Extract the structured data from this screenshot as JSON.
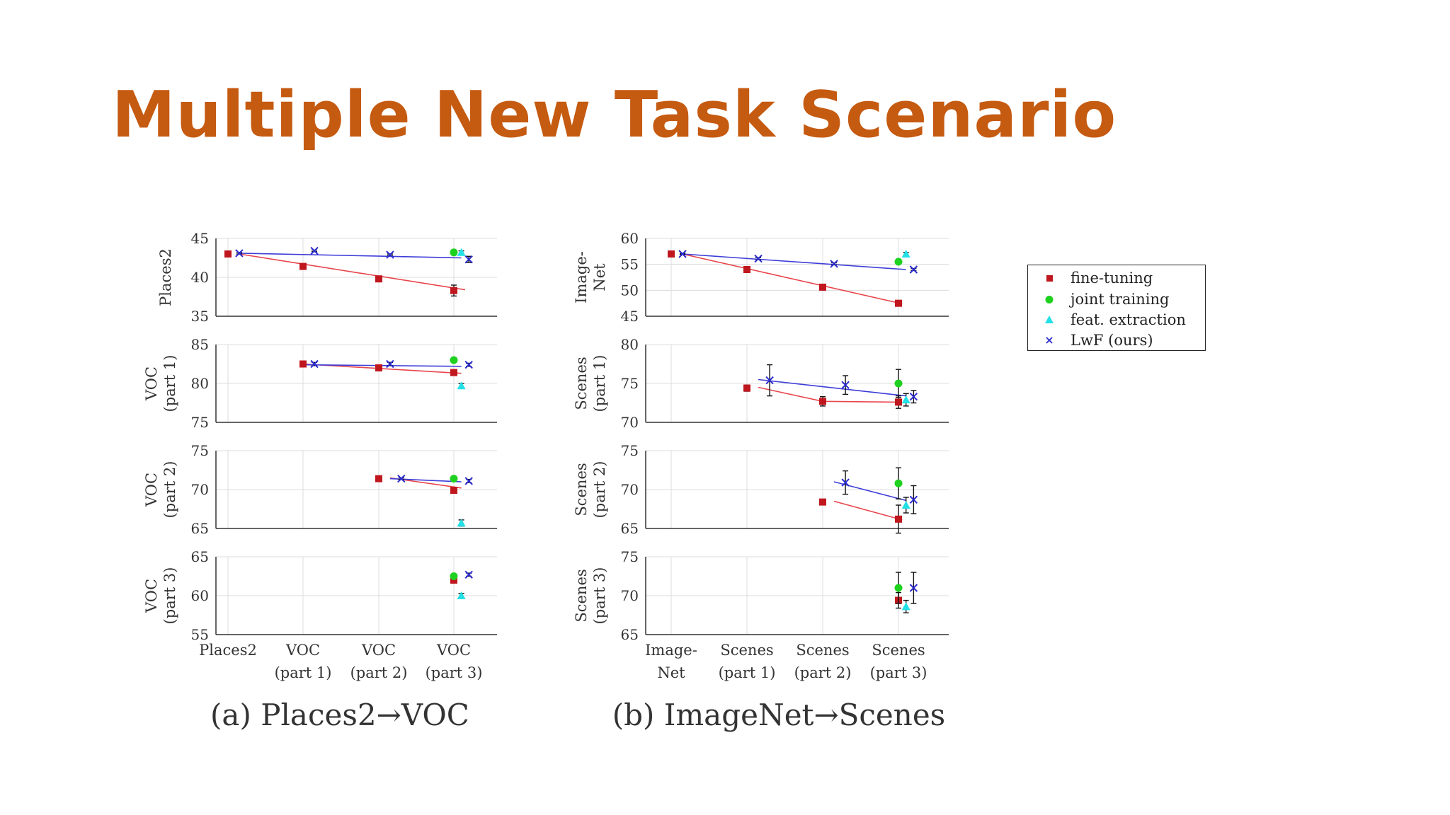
{
  "slide": {
    "title": "Multiple New Task Scenario"
  },
  "legend": {
    "items": [
      {
        "label": "fine-tuning",
        "marker": "square",
        "color": "#c0161e"
      },
      {
        "label": "joint training",
        "marker": "circle",
        "color": "#1fd11f"
      },
      {
        "label": "feat. extraction",
        "marker": "triangle",
        "color": "#22e0e6"
      },
      {
        "label": "LwF (ours)",
        "marker": "x",
        "color": "#2b2bd0"
      }
    ]
  },
  "chart_data": [
    {
      "type": "scatter",
      "title": "(a) Places2→VOC",
      "categories": [
        "Places2",
        "VOC\n(part 1)",
        "VOC\n(part 2)",
        "VOC\n(part 3)"
      ],
      "panels": [
        {
          "ylabel": "Places2",
          "ylim": [
            35,
            45
          ],
          "yticks": [
            35,
            40,
            45
          ],
          "series": [
            {
              "name": "fine-tuning",
              "points": [
                [
                  1,
                  43.0,
                  0
                ],
                [
                  2,
                  41.4,
                  0.2
                ],
                [
                  3,
                  39.8,
                  0.2
                ],
                [
                  4,
                  38.3,
                  0.7
                ]
              ],
              "fit": [
                [
                  1.15,
                  43.0
                ],
                [
                  4.15,
                  38.4
                ]
              ]
            },
            {
              "name": "joint training",
              "points": [
                [
                  4,
                  43.2,
                  0.2
                ]
              ]
            },
            {
              "name": "feat. extraction",
              "points": [
                [
                  4.1,
                  43.2,
                  0.2
                ]
              ]
            },
            {
              "name": "LwF (ours)",
              "points": [
                [
                  1.15,
                  43.1,
                  0.1
                ],
                [
                  2.15,
                  43.4,
                  0.1
                ],
                [
                  3.15,
                  42.9,
                  0.1
                ],
                [
                  4.2,
                  42.3,
                  0.4
                ]
              ],
              "fit": [
                [
                  1.15,
                  43.1
                ],
                [
                  4.1,
                  42.5
                ]
              ]
            }
          ]
        },
        {
          "ylabel": "VOC\n(part 1)",
          "ylim": [
            75,
            85
          ],
          "yticks": [
            75,
            80,
            85
          ],
          "series": [
            {
              "name": "fine-tuning",
              "points": [
                [
                  2,
                  82.5,
                  0.2
                ],
                [
                  3,
                  82.0,
                  0.3
                ],
                [
                  4,
                  81.4,
                  0.3
                ]
              ],
              "fit": [
                [
                  2.0,
                  82.5
                ],
                [
                  4.1,
                  81.3
                ]
              ]
            },
            {
              "name": "joint training",
              "points": [
                [
                  4,
                  83.0,
                  0.3
                ]
              ]
            },
            {
              "name": "feat. extraction",
              "points": [
                [
                  4.1,
                  79.7,
                  0.3
                ]
              ]
            },
            {
              "name": "LwF (ours)",
              "points": [
                [
                  2.15,
                  82.5,
                  0.2
                ],
                [
                  3.15,
                  82.5,
                  0.2
                ],
                [
                  4.2,
                  82.4,
                  0.2
                ]
              ],
              "fit": [
                [
                  2.0,
                  82.4
                ],
                [
                  4.1,
                  82.2
                ]
              ]
            }
          ]
        },
        {
          "ylabel": "VOC\n(part 2)",
          "ylim": [
            65,
            75
          ],
          "yticks": [
            65,
            70,
            75
          ],
          "series": [
            {
              "name": "fine-tuning",
              "points": [
                [
                  3,
                  71.4,
                  0.2
                ],
                [
                  4,
                  69.9,
                  0.3
                ]
              ],
              "fit": [
                [
                  3.15,
                  71.5
                ],
                [
                  4.1,
                  70.2
                ]
              ]
            },
            {
              "name": "joint training",
              "points": [
                [
                  4,
                  71.4,
                  0.3
                ]
              ]
            },
            {
              "name": "feat. extraction",
              "points": [
                [
                  4.1,
                  65.7,
                  0.4
                ]
              ]
            },
            {
              "name": "LwF (ours)",
              "points": [
                [
                  3.3,
                  71.4,
                  0.1
                ],
                [
                  4.2,
                  71.1,
                  0.2
                ]
              ],
              "fit": [
                [
                  3.15,
                  71.4
                ],
                [
                  4.1,
                  71.0
                ]
              ]
            }
          ]
        },
        {
          "ylabel": "VOC\n(part 3)",
          "ylim": [
            55,
            65
          ],
          "yticks": [
            55,
            60,
            65
          ],
          "series": [
            {
              "name": "fine-tuning",
              "points": [
                [
                  4,
                  62.0,
                  0.3
                ]
              ]
            },
            {
              "name": "joint training",
              "points": [
                [
                  4,
                  62.5,
                  0.3
                ]
              ]
            },
            {
              "name": "feat. extraction",
              "points": [
                [
                  4.1,
                  60.0,
                  0.3
                ]
              ]
            },
            {
              "name": "LwF (ours)",
              "points": [
                [
                  4.2,
                  62.7,
                  0.2
                ]
              ]
            }
          ]
        }
      ]
    },
    {
      "type": "scatter",
      "title": "(b) ImageNet→Scenes",
      "categories": [
        "Image-\nNet",
        "Scenes\n(part 1)",
        "Scenes\n(part 2)",
        "Scenes\n(part 3)"
      ],
      "panels": [
        {
          "ylabel": "Image-\nNet",
          "ylim": [
            45,
            60
          ],
          "yticks": [
            45,
            50,
            55,
            60
          ],
          "series": [
            {
              "name": "fine-tuning",
              "points": [
                [
                  1,
                  57.0,
                  0
                ],
                [
                  2,
                  54.0,
                  0.2
                ],
                [
                  3,
                  50.6,
                  0.2
                ],
                [
                  4,
                  47.5,
                  0.3
                ]
              ],
              "fit": [
                [
                  1.15,
                  57.0
                ],
                [
                  4.05,
                  47.4
                ]
              ]
            },
            {
              "name": "joint training",
              "points": [
                [
                  4,
                  55.5,
                  0.3
                ]
              ]
            },
            {
              "name": "feat. extraction",
              "points": [
                [
                  4.1,
                  57.0,
                  0.3
                ]
              ]
            },
            {
              "name": "LwF (ours)",
              "points": [
                [
                  1.15,
                  57.0,
                  0.1
                ],
                [
                  2.15,
                  56.1,
                  0.2
                ],
                [
                  3.15,
                  55.1,
                  0.2
                ],
                [
                  4.2,
                  54.0,
                  0.2
                ]
              ],
              "fit": [
                [
                  1.15,
                  57.0
                ],
                [
                  4.1,
                  54.0
                ]
              ]
            }
          ]
        },
        {
          "ylabel": "Scenes\n(part 1)",
          "ylim": [
            70,
            80
          ],
          "yticks": [
            70,
            75,
            80
          ],
          "series": [
            {
              "name": "fine-tuning",
              "points": [
                [
                  2,
                  74.4,
                  0.4
                ],
                [
                  3,
                  72.7,
                  0.6
                ],
                [
                  4,
                  72.6,
                  0.8
                ]
              ],
              "fit": [
                [
                  2.15,
                  74.5
                ],
                [
                  3.0,
                  72.7
                ],
                [
                  4.0,
                  72.6
                ]
              ]
            },
            {
              "name": "joint training",
              "points": [
                [
                  4,
                  75.0,
                  1.8
                ]
              ]
            },
            {
              "name": "feat. extraction",
              "points": [
                [
                  4.1,
                  72.9,
                  0.8
                ]
              ]
            },
            {
              "name": "LwF (ours)",
              "points": [
                [
                  2.3,
                  75.4,
                  2.0
                ],
                [
                  3.3,
                  74.8,
                  1.2
                ],
                [
                  4.2,
                  73.3,
                  0.8
                ]
              ],
              "fit": [
                [
                  2.15,
                  75.5
                ],
                [
                  4.1,
                  73.4
                ]
              ]
            }
          ]
        },
        {
          "ylabel": "Scenes\n(part 2)",
          "ylim": [
            65,
            75
          ],
          "yticks": [
            65,
            70,
            75
          ],
          "series": [
            {
              "name": "fine-tuning",
              "points": [
                [
                  3,
                  68.4,
                  0.2
                ],
                [
                  4,
                  66.2,
                  1.8
                ]
              ],
              "fit": [
                [
                  3.15,
                  68.5
                ],
                [
                  4.05,
                  66.1
                ]
              ]
            },
            {
              "name": "joint training",
              "points": [
                [
                  4,
                  70.8,
                  2.0
                ]
              ]
            },
            {
              "name": "feat. extraction",
              "points": [
                [
                  4.1,
                  68.0,
                  1.0
                ]
              ]
            },
            {
              "name": "LwF (ours)",
              "points": [
                [
                  3.3,
                  70.9,
                  1.5
                ],
                [
                  4.2,
                  68.7,
                  1.8
                ]
              ],
              "fit": [
                [
                  3.15,
                  71.0
                ],
                [
                  4.1,
                  68.6
                ]
              ]
            }
          ]
        },
        {
          "ylabel": "Scenes\n(part 3)",
          "ylim": [
            65,
            75
          ],
          "yticks": [
            65,
            70,
            75
          ],
          "series": [
            {
              "name": "fine-tuning",
              "points": [
                [
                  4,
                  69.4,
                  1.0
                ]
              ]
            },
            {
              "name": "joint training",
              "points": [
                [
                  4,
                  71.0,
                  2.0
                ]
              ]
            },
            {
              "name": "feat. extraction",
              "points": [
                [
                  4.1,
                  68.6,
                  0.8
                ]
              ]
            },
            {
              "name": "LwF (ours)",
              "points": [
                [
                  4.2,
                  71.0,
                  2.0
                ]
              ]
            }
          ]
        }
      ]
    }
  ]
}
